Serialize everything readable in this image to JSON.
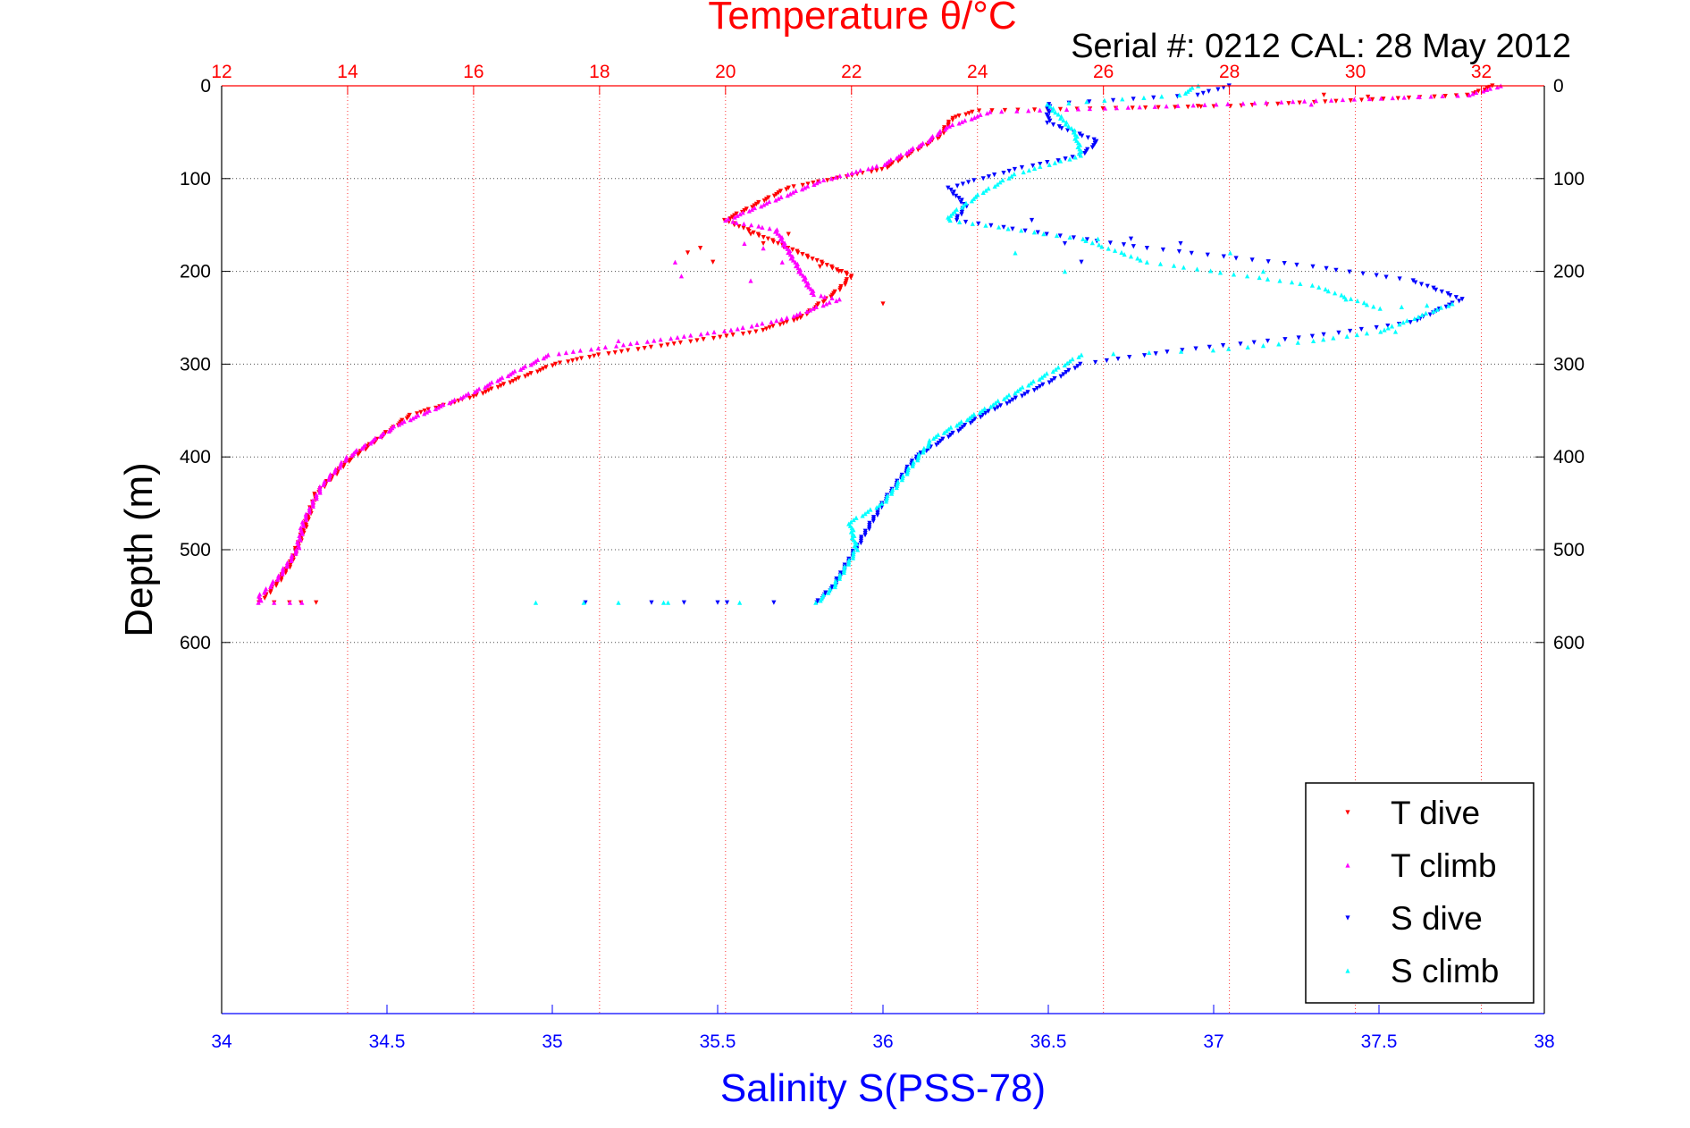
{
  "chart_data": {
    "type": "scatter",
    "title": "Temperature θ/°C",
    "subtitle": "Serial #: 0212  CAL: 28 May 2012",
    "xlabel_bottom": "Salinity S(PSS-78)",
    "ylabel": "Depth (m)",
    "x_bottom": {
      "range": [
        34,
        38
      ],
      "ticks": [
        "34",
        "34.5",
        "35",
        "35.5",
        "36",
        "36.5",
        "37",
        "37.5",
        "38"
      ]
    },
    "x_top": {
      "range": [
        12,
        33
      ],
      "ticks": [
        "12",
        "14",
        "16",
        "18",
        "20",
        "22",
        "24",
        "26",
        "28",
        "30",
        "32"
      ]
    },
    "y": {
      "range": [
        0,
        1000
      ],
      "reversed": true,
      "ticks": [
        "0",
        "100",
        "200",
        "300",
        "400",
        "500",
        "600"
      ]
    },
    "grid": true,
    "legend_position": "bottom-right",
    "colors": {
      "T dive": "#ff0000",
      "T climb": "#ff00ff",
      "S dive": "#0000ff",
      "S climb": "#00ffff",
      "top_axis": "#ff0000",
      "bottom_axis": "#0000ff"
    },
    "series": [
      {
        "name": "T dive",
        "axis": "top",
        "marker": "triangle-down",
        "profile": [
          [
            32.2,
            0
          ],
          [
            31.8,
            10
          ],
          [
            28,
            22
          ],
          [
            24,
            27
          ],
          [
            23.6,
            35
          ],
          [
            23.4,
            55
          ],
          [
            22.5,
            90
          ],
          [
            21,
            110
          ],
          [
            20,
            145
          ],
          [
            20.5,
            160
          ],
          [
            21,
            175
          ],
          [
            22,
            205
          ],
          [
            21.8,
            220
          ],
          [
            21.2,
            250
          ],
          [
            20.5,
            265
          ],
          [
            18,
            290
          ],
          [
            17.3,
            300
          ],
          [
            16,
            335
          ],
          [
            15,
            355
          ],
          [
            14,
            405
          ],
          [
            13.5,
            440
          ],
          [
            13.3,
            480
          ],
          [
            13.1,
            515
          ],
          [
            12.9,
            535
          ],
          [
            12.7,
            550
          ],
          [
            12.6,
            557
          ],
          [
            13.5,
            557
          ]
        ],
        "scatter": [
          [
            19.4,
            180
          ],
          [
            19.6,
            175
          ],
          [
            19.8,
            190
          ],
          [
            20.4,
            160
          ],
          [
            20.6,
            170
          ],
          [
            21,
            160
          ],
          [
            21.5,
            195
          ],
          [
            21.8,
            200
          ],
          [
            22.5,
            235
          ],
          [
            29.5,
            10
          ],
          [
            30.2,
            12
          ],
          [
            27.5,
            22
          ]
        ]
      },
      {
        "name": "T climb",
        "axis": "top",
        "marker": "triangle-up",
        "profile": [
          [
            32.3,
            0
          ],
          [
            31.8,
            10
          ],
          [
            27,
            22
          ],
          [
            24.2,
            28
          ],
          [
            23.5,
            45
          ],
          [
            23.2,
            60
          ],
          [
            22.5,
            85
          ],
          [
            21.5,
            103
          ],
          [
            20,
            145
          ],
          [
            20.8,
            155
          ],
          [
            21.4,
            225
          ],
          [
            21.8,
            230
          ],
          [
            21,
            250
          ],
          [
            20.2,
            262
          ],
          [
            18.5,
            278
          ],
          [
            17.2,
            290
          ],
          [
            16,
            330
          ],
          [
            14.8,
            365
          ],
          [
            14,
            400
          ],
          [
            13.6,
            430
          ],
          [
            13.3,
            470
          ],
          [
            13.2,
            500
          ],
          [
            12.9,
            530
          ],
          [
            12.6,
            550
          ],
          [
            12.6,
            557
          ],
          [
            13.3,
            557
          ]
        ],
        "scatter": [
          [
            19.2,
            190
          ],
          [
            19.3,
            205
          ],
          [
            20.3,
            170
          ],
          [
            20.6,
            175
          ],
          [
            20.4,
            210
          ],
          [
            20.9,
            190
          ],
          [
            31,
            12
          ],
          [
            29.3,
            20
          ],
          [
            18.3,
            275
          ]
        ]
      },
      {
        "name": "S dive",
        "axis": "bottom",
        "marker": "triangle-down",
        "profile": [
          [
            37.05,
            0
          ],
          [
            36.95,
            10
          ],
          [
            36.5,
            20
          ],
          [
            36.5,
            40
          ],
          [
            36.65,
            60
          ],
          [
            36.6,
            75
          ],
          [
            36.4,
            90
          ],
          [
            36.2,
            110
          ],
          [
            36.25,
            130
          ],
          [
            36.22,
            145
          ],
          [
            36.5,
            160
          ],
          [
            36.8,
            175
          ],
          [
            37.3,
            195
          ],
          [
            37.6,
            210
          ],
          [
            37.75,
            230
          ],
          [
            37.6,
            255
          ],
          [
            37.3,
            270
          ],
          [
            36.9,
            285
          ],
          [
            36.6,
            300
          ],
          [
            36.5,
            320
          ],
          [
            36.3,
            355
          ],
          [
            36.1,
            400
          ],
          [
            36,
            450
          ],
          [
            35.95,
            480
          ],
          [
            35.9,
            510
          ],
          [
            35.85,
            540
          ],
          [
            35.8,
            557
          ],
          [
            35.4,
            557
          ]
        ],
        "scatter": [
          [
            36.45,
            145
          ],
          [
            36.55,
            170
          ],
          [
            36.6,
            190
          ],
          [
            36.75,
            165
          ],
          [
            36.9,
            170
          ],
          [
            35.1,
            557
          ],
          [
            35.3,
            557
          ],
          [
            35.5,
            557
          ]
        ]
      },
      {
        "name": "S climb",
        "axis": "bottom",
        "marker": "triangle-up",
        "profile": [
          [
            36.95,
            0
          ],
          [
            36.9,
            10
          ],
          [
            36.5,
            20
          ],
          [
            36.58,
            50
          ],
          [
            36.6,
            75
          ],
          [
            36.4,
            95
          ],
          [
            36.3,
            115
          ],
          [
            36.2,
            140
          ],
          [
            36.2,
            145
          ],
          [
            36.6,
            165
          ],
          [
            36.8,
            190
          ],
          [
            37.1,
            205
          ],
          [
            37.3,
            215
          ],
          [
            37.5,
            240
          ],
          [
            37.72,
            235
          ],
          [
            37.5,
            265
          ],
          [
            37.3,
            275
          ],
          [
            37,
            285
          ],
          [
            36.6,
            290
          ],
          [
            36.5,
            310
          ],
          [
            36.3,
            350
          ],
          [
            36.15,
            380
          ],
          [
            36,
            450
          ],
          [
            35.9,
            470
          ],
          [
            35.92,
            500
          ],
          [
            35.85,
            540
          ],
          [
            35.8,
            557
          ],
          [
            35.1,
            557
          ]
        ],
        "scatter": [
          [
            36.4,
            180
          ],
          [
            36.55,
            200
          ],
          [
            36.65,
            165
          ],
          [
            37.05,
            180
          ],
          [
            37.4,
            230
          ],
          [
            37.55,
            265
          ],
          [
            37.15,
            200
          ],
          [
            34.95,
            557
          ],
          [
            35.2,
            557
          ],
          [
            35.35,
            557
          ]
        ]
      }
    ]
  }
}
